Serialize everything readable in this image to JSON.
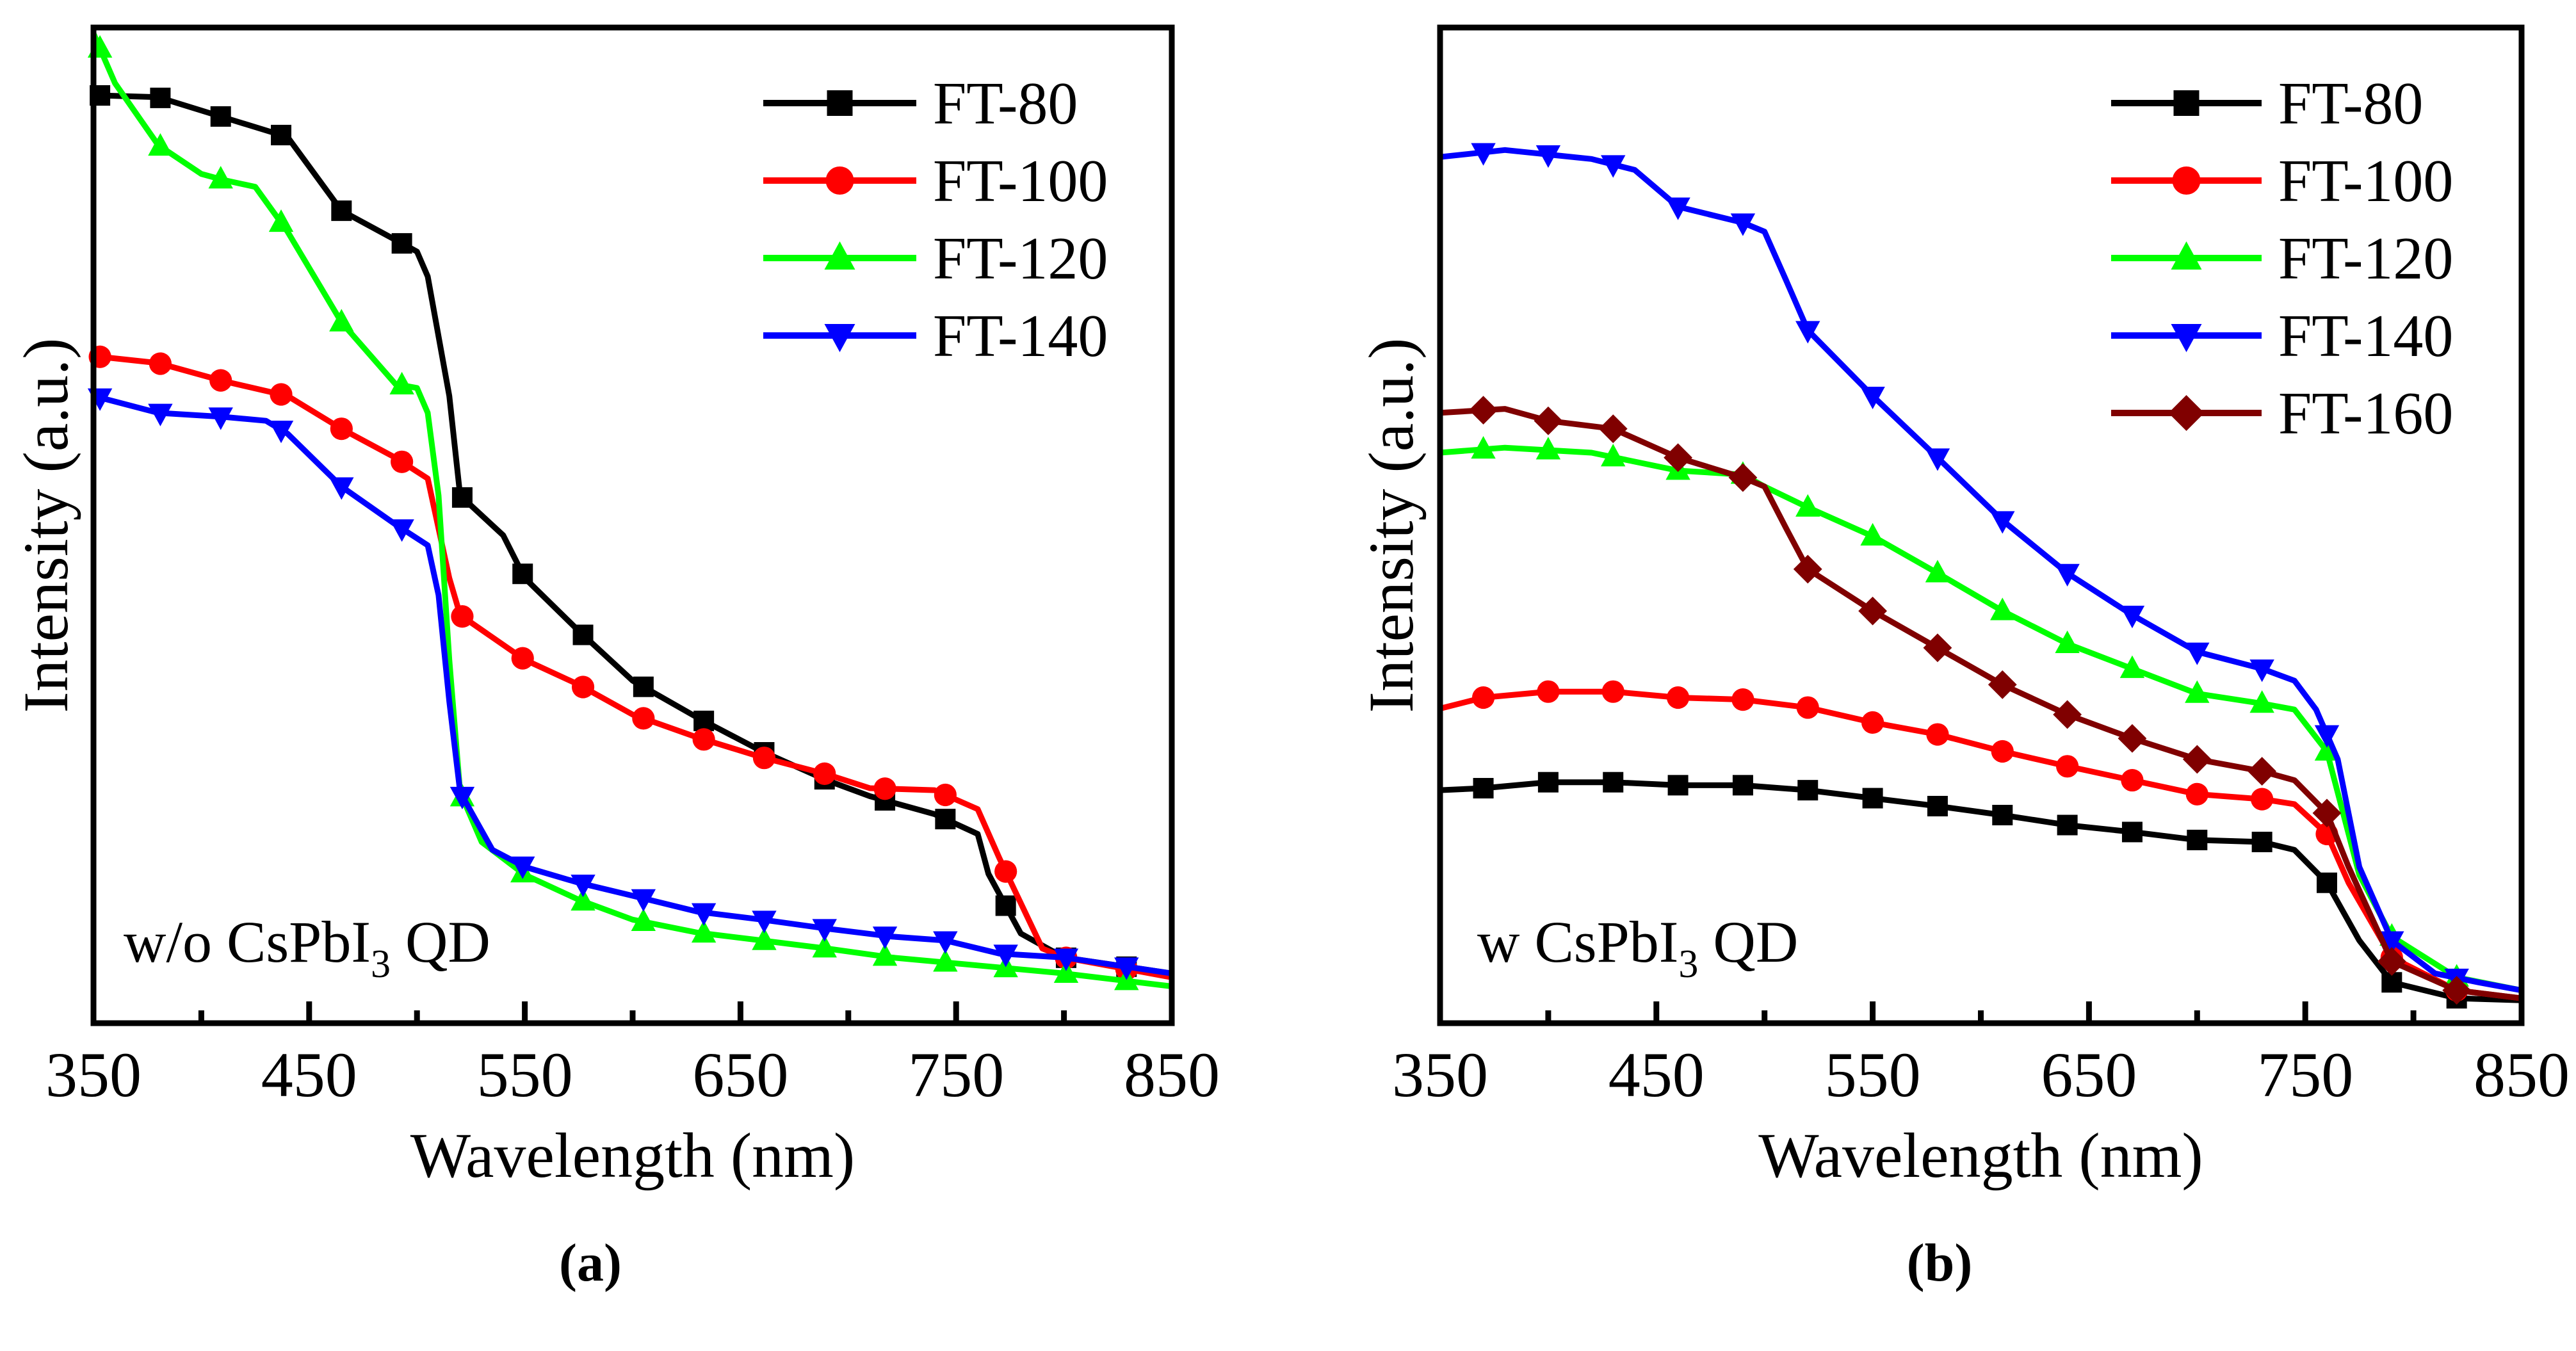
{
  "chart_data": [
    {
      "type": "line",
      "panel_label": "a",
      "caption": "(a)",
      "annotation": {
        "prefix": "w/o CsPbI",
        "sub": "3",
        "suffix": " QD"
      },
      "xlabel": "Wavelength (nm)",
      "ylabel": "Intensity (a.u.)",
      "xlim": [
        350,
        850
      ],
      "ylim": [
        0,
        100
      ],
      "xticks": [
        350,
        450,
        550,
        650,
        750,
        850
      ],
      "xticks_minor": [
        400,
        500,
        600,
        700,
        800
      ],
      "yticks": [],
      "legend_position": "top-right",
      "marker_x": [
        353,
        381,
        409,
        437,
        465,
        493,
        521,
        549,
        577,
        605,
        633,
        661,
        689,
        717,
        745,
        773,
        801,
        829
      ],
      "series": [
        {
          "name": "FT-80",
          "color": "#000000",
          "marker": "square",
          "x": [
            350,
            380,
            410,
            440,
            465,
            500,
            505,
            515,
            520,
            540,
            550,
            575,
            600,
            630,
            660,
            690,
            710,
            740,
            760,
            765,
            780,
            800,
            825,
            850
          ],
          "y": [
            93.2,
            93,
            91,
            89,
            81.6,
            77.5,
            75,
            63,
            53,
            49,
            44.7,
            39.4,
            34.4,
            30.7,
            27.3,
            24.4,
            22.8,
            21,
            19,
            15,
            9,
            6.6,
            5.8,
            5
          ]
        },
        {
          "name": "FT-100",
          "color": "#ff0000",
          "marker": "circle",
          "x": [
            350,
            380,
            410,
            440,
            465,
            490,
            505,
            515,
            520,
            550,
            575,
            600,
            630,
            660,
            690,
            710,
            740,
            760,
            770,
            790,
            800,
            830,
            850
          ],
          "y": [
            67,
            66.3,
            64.5,
            63,
            59.7,
            56.8,
            54.7,
            44.7,
            41,
            36.5,
            34,
            31,
            28.7,
            26.7,
            25,
            23.6,
            23.4,
            21.5,
            16.6,
            7.5,
            6.6,
            5.4,
            4.6
          ]
        },
        {
          "name": "FT-120",
          "color": "#00ff00",
          "marker": "triangle-up",
          "x": [
            350,
            360,
            380,
            400,
            410,
            425,
            440,
            465,
            490,
            500,
            505,
            510,
            515,
            520,
            530,
            550,
            575,
            600,
            630,
            660,
            690,
            720,
            760,
            800,
            850
          ],
          "y": [
            99.4,
            94.4,
            88.2,
            85.3,
            84.7,
            84,
            79.5,
            70.4,
            64.2,
            63.8,
            61.3,
            53,
            36.5,
            23.2,
            18.2,
            14.9,
            12.4,
            10.4,
            9.1,
            8.3,
            7.5,
            6.6,
            5.8,
            5,
            3.7
          ]
        },
        {
          "name": "FT-140",
          "color": "#0000ff",
          "marker": "triangle-down",
          "x": [
            350,
            380,
            410,
            430,
            440,
            465,
            490,
            505,
            510,
            515,
            520,
            535,
            550,
            575,
            600,
            630,
            660,
            690,
            720,
            745,
            770,
            800,
            850
          ],
          "y": [
            63,
            61.3,
            60.9,
            60.5,
            59.2,
            53.9,
            50.1,
            48,
            43,
            32.3,
            23.2,
            17.4,
            15.7,
            14.1,
            12.8,
            11.2,
            10.4,
            9.5,
            8.7,
            8.3,
            7,
            6.6,
            5
          ]
        }
      ]
    },
    {
      "type": "line",
      "panel_label": "b",
      "caption": "(b)",
      "annotation": {
        "prefix": "w CsPbI",
        "sub": "3",
        "suffix": " QD"
      },
      "xlabel": "Wavelength (nm)",
      "ylabel": "Intensity (a.u.)",
      "xlim": [
        350,
        850
      ],
      "ylim": [
        0,
        100
      ],
      "xticks": [
        350,
        450,
        550,
        650,
        750,
        850
      ],
      "xticks_minor": [
        400,
        500,
        600,
        700,
        800
      ],
      "yticks": [],
      "legend_position": "top-right",
      "marker_x": [
        370,
        400,
        430,
        460,
        490,
        520,
        550,
        580,
        610,
        640,
        670,
        700,
        730,
        760,
        790,
        820
      ],
      "series": [
        {
          "name": "FT-80",
          "color": "#000000",
          "marker": "square",
          "x": [
            350,
            370,
            400,
            430,
            460,
            490,
            520,
            550,
            580,
            610,
            640,
            670,
            700,
            730,
            745,
            760,
            775,
            790,
            820,
            850
          ],
          "y": [
            23.4,
            23.6,
            24.2,
            24.2,
            23.9,
            23.9,
            23.4,
            22.6,
            21.8,
            20.9,
            19.9,
            19.2,
            18.4,
            18.2,
            17.4,
            14.1,
            8.3,
            4.1,
            2.5,
            2.3
          ]
        },
        {
          "name": "FT-100",
          "color": "#ff0000",
          "marker": "circle",
          "x": [
            350,
            370,
            400,
            430,
            460,
            490,
            520,
            550,
            580,
            610,
            640,
            670,
            700,
            730,
            745,
            760,
            770,
            790,
            820,
            850
          ],
          "y": [
            31.6,
            32.7,
            33.3,
            33.3,
            32.7,
            32.5,
            31.7,
            30.2,
            29,
            27.3,
            25.8,
            24.4,
            23,
            22.5,
            22,
            19,
            14.1,
            6.6,
            3.3,
            2.5
          ]
        },
        {
          "name": "FT-120",
          "color": "#00ff00",
          "marker": "triangle-up",
          "x": [
            350,
            380,
            420,
            460,
            490,
            500,
            520,
            550,
            580,
            610,
            640,
            670,
            700,
            730,
            745,
            760,
            775,
            790,
            820,
            850
          ],
          "y": [
            57.3,
            57.8,
            57.3,
            55.5,
            55.1,
            53.9,
            51.8,
            48.9,
            45.2,
            41.4,
            38.1,
            35.6,
            33.1,
            32.1,
            31.5,
            27.3,
            14.9,
            8.7,
            4.6,
            3.3
          ]
        },
        {
          "name": "FT-140",
          "color": "#0000ff",
          "marker": "triangle-down",
          "x": [
            350,
            380,
            420,
            440,
            460,
            490,
            500,
            510,
            520,
            550,
            580,
            610,
            640,
            670,
            700,
            730,
            745,
            755,
            765,
            775,
            790,
            810,
            830,
            850
          ],
          "y": [
            87,
            87.7,
            86.8,
            85.7,
            82,
            80.4,
            79.5,
            74.6,
            69.6,
            63,
            56.8,
            50.5,
            45.2,
            41,
            37.3,
            35.6,
            34.4,
            31.5,
            26.5,
            15.7,
            8.3,
            5,
            4.1,
            3.3
          ]
        },
        {
          "name": "FT-160",
          "color": "#800000",
          "marker": "diamond",
          "x": [
            350,
            380,
            400,
            430,
            460,
            490,
            500,
            510,
            520,
            550,
            580,
            610,
            640,
            670,
            700,
            730,
            745,
            760,
            770,
            790,
            820,
            850
          ],
          "y": [
            61.3,
            61.7,
            60.5,
            59.7,
            56.8,
            54.8,
            53.9,
            49.7,
            45.6,
            41.4,
            37.7,
            34,
            31,
            28.6,
            26.5,
            25.3,
            24.4,
            21.1,
            15.7,
            6.2,
            3.3,
            2.5
          ]
        }
      ]
    }
  ]
}
